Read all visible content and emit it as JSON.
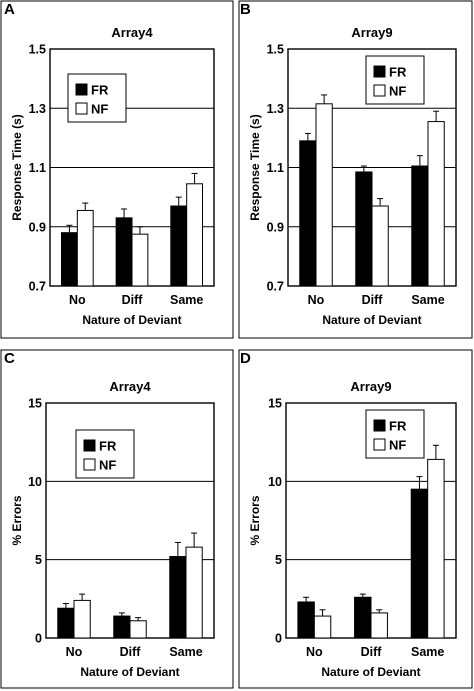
{
  "chart_data": [
    {
      "type": "bar",
      "panel": "A",
      "title": "Array4",
      "xlabel": "Nature of Deviant",
      "ylabel": "Response Time (s)",
      "categories": [
        "No",
        "Diff",
        "Same"
      ],
      "ylim": [
        0.7,
        1.5
      ],
      "yticks": [
        "0.7",
        "0.9",
        "1.1",
        "1.3",
        "1.5"
      ],
      "grid": true,
      "legend": "top-left",
      "series": [
        {
          "name": "FR",
          "values": [
            0.88,
            0.93,
            0.97
          ],
          "errors": [
            0.025,
            0.03,
            0.03
          ]
        },
        {
          "name": "NF",
          "values": [
            0.955,
            0.875,
            1.045
          ],
          "errors": [
            0.025,
            0.025,
            0.035
          ]
        }
      ]
    },
    {
      "type": "bar",
      "panel": "B",
      "title": "Array9",
      "xlabel": "Nature of Deviant",
      "ylabel": "Response Time (s)",
      "categories": [
        "No",
        "Diff",
        "Same"
      ],
      "ylim": [
        0.7,
        1.5
      ],
      "yticks": [
        "0.7",
        "0.9",
        "1.1",
        "1.3",
        "1.5"
      ],
      "grid": true,
      "legend": "top-right",
      "series": [
        {
          "name": "FR",
          "values": [
            1.19,
            1.085,
            1.105
          ],
          "errors": [
            0.025,
            0.02,
            0.035
          ]
        },
        {
          "name": "NF",
          "values": [
            1.315,
            0.97,
            1.255
          ],
          "errors": [
            0.03,
            0.025,
            0.035
          ]
        }
      ]
    },
    {
      "type": "bar",
      "panel": "C",
      "title": "Array4",
      "xlabel": "Nature of Deviant",
      "ylabel": "% Errors",
      "categories": [
        "No",
        "Diff",
        "Same"
      ],
      "ylim": [
        0,
        15
      ],
      "yticks": [
        "0",
        "5",
        "10",
        "15"
      ],
      "grid": true,
      "legend": "top-right",
      "series": [
        {
          "name": "FR",
          "values": [
            1.9,
            1.4,
            5.2
          ],
          "errors": [
            0.3,
            0.2,
            0.9
          ]
        },
        {
          "name": "NF",
          "values": [
            2.4,
            1.1,
            5.8
          ],
          "errors": [
            0.4,
            0.2,
            0.9
          ]
        }
      ]
    },
    {
      "type": "bar",
      "panel": "D",
      "title": "Array9",
      "xlabel": "Nature of Deviant",
      "ylabel": "% Errors",
      "categories": [
        "No",
        "Diff",
        "Same"
      ],
      "ylim": [
        0,
        15
      ],
      "yticks": [
        "0",
        "5",
        "10",
        "15"
      ],
      "grid": true,
      "legend": "top-right",
      "series": [
        {
          "name": "FR",
          "values": [
            2.3,
            2.6,
            9.5
          ],
          "errors": [
            0.3,
            0.2,
            0.8
          ]
        },
        {
          "name": "NF",
          "values": [
            1.4,
            1.6,
            11.4
          ],
          "errors": [
            0.4,
            0.2,
            0.9
          ]
        }
      ]
    }
  ]
}
